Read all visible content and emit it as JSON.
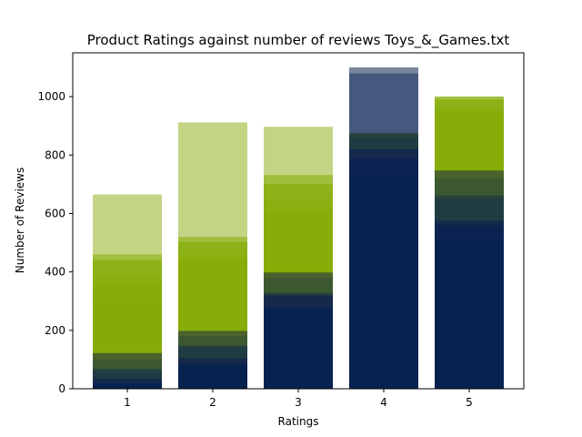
{
  "chart_data": {
    "type": "bar",
    "title": "Product Ratings against number of reviews Toys_&_Games.txt",
    "xlabel": "Ratings",
    "ylabel": "Number of Reviews",
    "categories": [
      "1",
      "2",
      "3",
      "4",
      "5"
    ],
    "ylim": [
      0,
      1150
    ],
    "yticks": [
      0,
      200,
      400,
      600,
      800,
      1000
    ],
    "grid": false,
    "legend": "none",
    "layers": [
      {
        "values": [
          665,
          912,
          897,
          1100,
          1000
        ],
        "color": "#c3d585"
      },
      {
        "values": [
          460,
          520,
          732,
          1080,
          1000
        ],
        "color": "#a2be3f"
      },
      {
        "values": [
          440,
          503,
          700,
          1080,
          990
        ],
        "color": "#8db217"
      },
      {
        "values": [
          410,
          480,
          680,
          1080,
          975
        ],
        "color": "#8db217"
      },
      {
        "values": [
          380,
          460,
          640,
          1080,
          960
        ],
        "color": "#8aaf0e"
      },
      {
        "values": [
          360,
          440,
          600,
          1080,
          945
        ],
        "color": "#88ad09"
      },
      {
        "values": [
          310,
          200,
          400,
          1080,
          750
        ],
        "color": "#86ab07"
      },
      {
        "values": [
          122,
          198,
          398,
          1080,
          747
        ],
        "color": "#4a622c"
      },
      {
        "values": [
          100,
          180,
          380,
          1080,
          720
        ],
        "color": "#3c5830"
      },
      {
        "values": [
          68,
          148,
          328,
          875,
          662
        ],
        "color": "#27423d"
      },
      {
        "values": [
          60,
          140,
          320,
          860,
          650
        ],
        "color": "#1f3c43"
      },
      {
        "values": [
          35,
          105,
          320,
          820,
          575
        ],
        "color": "#15294b"
      },
      {
        "values": [
          20,
          85,
          280,
          790,
          560
        ],
        "color": "#0b2350"
      },
      {
        "values": [
          15,
          80,
          270,
          720,
          510
        ],
        "color": "#07224f"
      }
    ],
    "bar4_extra": {
      "value": 1080,
      "color": "#47587f"
    },
    "bar4_cap": {
      "value": 1100,
      "color": "#7a859f"
    }
  }
}
